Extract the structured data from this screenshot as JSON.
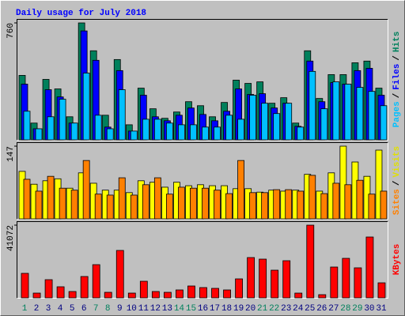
{
  "chart_data": [
    {
      "type": "bar",
      "title": "Daily usage for July 2018",
      "legend_separator": "/",
      "series": [
        {
          "name": "Hits",
          "color": "#00805c",
          "values": [
            419,
            109,
            393,
            331,
            150,
            760,
            579,
            160,
            522,
            98,
            336,
            202,
            140,
            181,
            248,
            222,
            150,
            243,
            388,
            367,
            377,
            238,
            274,
            109,
            579,
            269,
            424,
            424,
            501,
            512,
            336
          ]
        },
        {
          "name": "Files",
          "color": "#0000ff",
          "values": [
            362,
            72,
            326,
            279,
            109,
            708,
            517,
            83,
            450,
            57,
            290,
            150,
            124,
            160,
            207,
            165,
            124,
            186,
            331,
            295,
            300,
            207,
            238,
            88,
            512,
            248,
            372,
            362,
            450,
            465,
            290
          ]
        },
        {
          "name": "Pages",
          "color": "#00c0ff",
          "values": [
            186,
            72,
            150,
            264,
            109,
            434,
            160,
            72,
            326,
            57,
            134,
            134,
            109,
            98,
            98,
            83,
            83,
            160,
            134,
            290,
            238,
            171,
            238,
            83,
            445,
            202,
            377,
            362,
            341,
            315,
            222
          ]
        }
      ],
      "ylim": [
        0,
        760
      ],
      "yticks": [
        760
      ]
    },
    {
      "type": "bar",
      "legend_separator": "/",
      "series": [
        {
          "name": "Visits",
          "color": "#ffff00",
          "values": [
            96,
            70,
            77,
            81,
            62,
            93,
            72,
            58,
            58,
            53,
            77,
            74,
            64,
            74,
            67,
            69,
            67,
            67,
            61,
            61,
            54,
            58,
            56,
            58,
            90,
            56,
            93,
            147,
            115,
            86,
            139
          ]
        },
        {
          "name": "Sites",
          "color": "#ff8000",
          "values": [
            80,
            56,
            86,
            62,
            58,
            118,
            50,
            48,
            83,
            48,
            69,
            83,
            50,
            64,
            62,
            62,
            58,
            51,
            118,
            53,
            53,
            59,
            59,
            56,
            88,
            51,
            72,
            69,
            78,
            50,
            56
          ]
        }
      ],
      "ylim": [
        0,
        147
      ],
      "yticks": [
        147
      ]
    },
    {
      "type": "bar",
      "series": [
        {
          "name": "KBytes",
          "color": "#ff0000",
          "values": [
            13838,
            2678,
            10267,
            6250,
            3571,
            12053,
            18749,
            3125,
            26784,
            2678,
            9374,
            3571,
            3125,
            4464,
            6696,
            5803,
            5357,
            4464,
            10714,
            22767,
            21874,
            15624,
            20981,
            2678,
            41072,
            1786,
            17410,
            22320,
            16963,
            34373,
            8482
          ]
        }
      ],
      "ylim": [
        0,
        41072
      ],
      "yticks": [
        41072
      ],
      "categories": [
        "1",
        "2",
        "3",
        "4",
        "5",
        "6",
        "7",
        "8",
        "9",
        "10",
        "11",
        "12",
        "13",
        "14",
        "15",
        "16",
        "17",
        "18",
        "19",
        "20",
        "21",
        "22",
        "23",
        "24",
        "25",
        "26",
        "27",
        "28",
        "29",
        "30",
        "31"
      ],
      "category_colors": [
        "#00805c",
        "#000080",
        "#000080",
        "#000080",
        "#000080",
        "#000080",
        "#00805c",
        "#00805c",
        "#000080",
        "#000080",
        "#000080",
        "#000080",
        "#000080",
        "#00805c",
        "#00805c",
        "#000080",
        "#000080",
        "#000080",
        "#000080",
        "#000080",
        "#00805c",
        "#00805c",
        "#000080",
        "#000080",
        "#000080",
        "#000080",
        "#000080",
        "#00805c",
        "#00805c",
        "#000080",
        "#000080"
      ]
    }
  ]
}
